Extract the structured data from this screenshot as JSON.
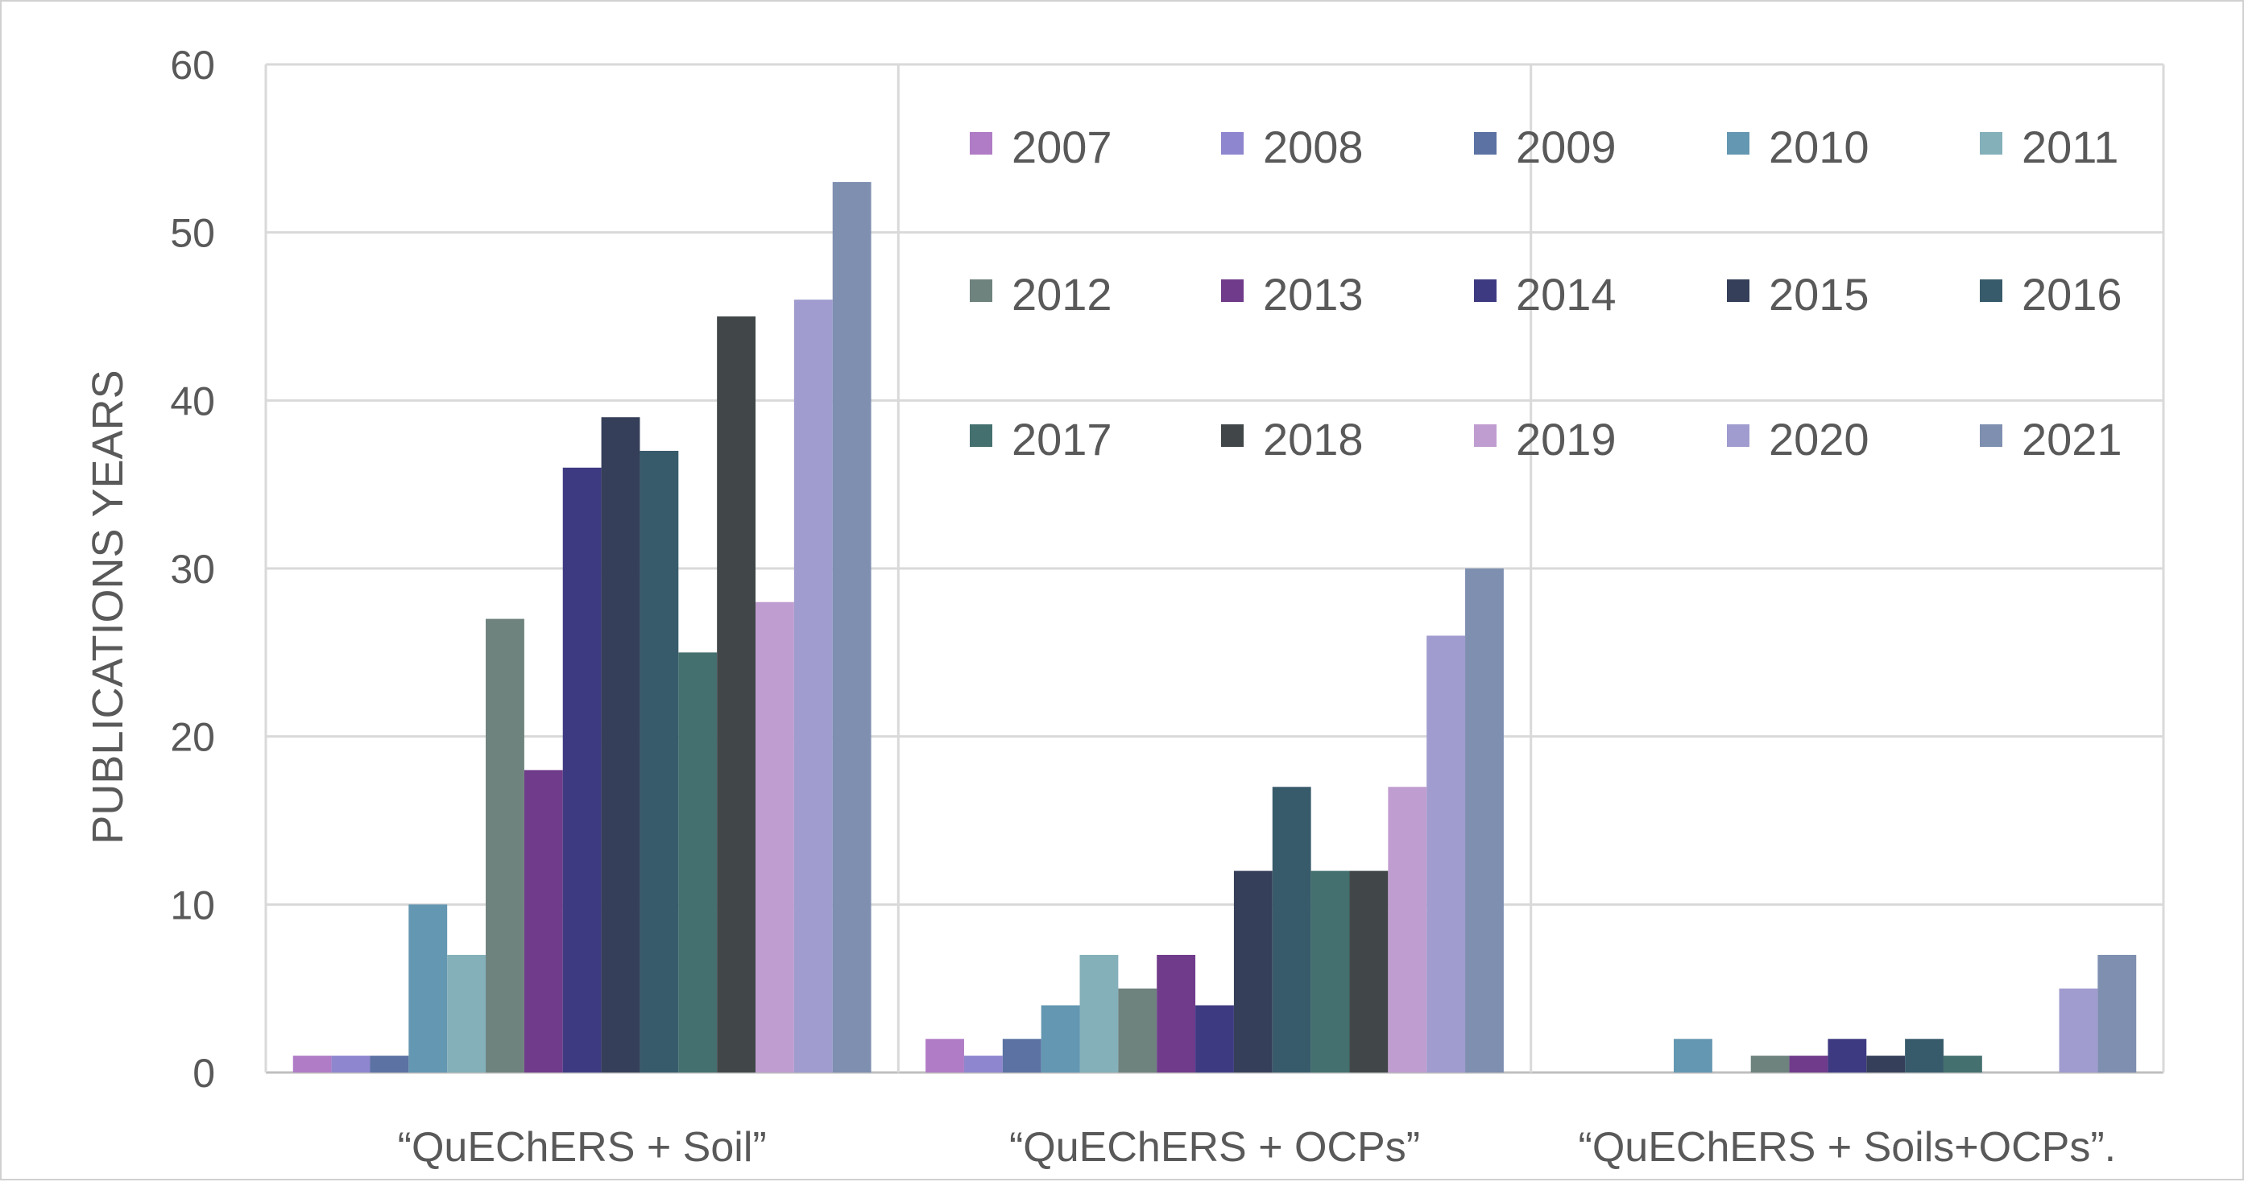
{
  "chart_data": {
    "type": "bar",
    "title": "",
    "xlabel": "",
    "ylabel": "PUBLICATIONS YEARS",
    "ylim": [
      0,
      60
    ],
    "yticks": [
      0,
      10,
      20,
      30,
      40,
      50,
      60
    ],
    "grid": true,
    "legend_position": "top-right inside plot, 3 rows x 5 columns",
    "categories": [
      "“QuEChERS + Soil”",
      "“QuEChERS + OCPs”",
      "“QuEChERS + Soils+OCPs”."
    ],
    "series": [
      {
        "name": "2007",
        "color": "#b07cc6",
        "values": [
          1,
          2,
          0
        ]
      },
      {
        "name": "2008",
        "color": "#8e86ce",
        "values": [
          1,
          1,
          0
        ]
      },
      {
        "name": "2009",
        "color": "#5b72a3",
        "values": [
          1,
          2,
          0
        ]
      },
      {
        "name": "2010",
        "color": "#6497b1",
        "values": [
          10,
          4,
          2
        ]
      },
      {
        "name": "2011",
        "color": "#84b0ba",
        "values": [
          7,
          7,
          0
        ]
      },
      {
        "name": "2012",
        "color": "#6e827e",
        "values": [
          27,
          5,
          1
        ]
      },
      {
        "name": "2013",
        "color": "#703b8a",
        "values": [
          18,
          7,
          1
        ]
      },
      {
        "name": "2014",
        "color": "#3e3a82",
        "values": [
          36,
          4,
          2
        ]
      },
      {
        "name": "2015",
        "color": "#353f59",
        "values": [
          39,
          12,
          1
        ]
      },
      {
        "name": "2016",
        "color": "#385b6b",
        "values": [
          37,
          17,
          2
        ]
      },
      {
        "name": "2017",
        "color": "#44706f",
        "values": [
          25,
          12,
          1
        ]
      },
      {
        "name": "2018",
        "color": "#414748",
        "values": [
          45,
          12,
          0
        ]
      },
      {
        "name": "2019",
        "color": "#c09dd0",
        "values": [
          28,
          17,
          0
        ]
      },
      {
        "name": "2020",
        "color": "#a09ccf",
        "values": [
          46,
          26,
          5
        ]
      },
      {
        "name": "2021",
        "color": "#7e8fb0",
        "values": [
          53,
          30,
          7
        ]
      }
    ]
  }
}
